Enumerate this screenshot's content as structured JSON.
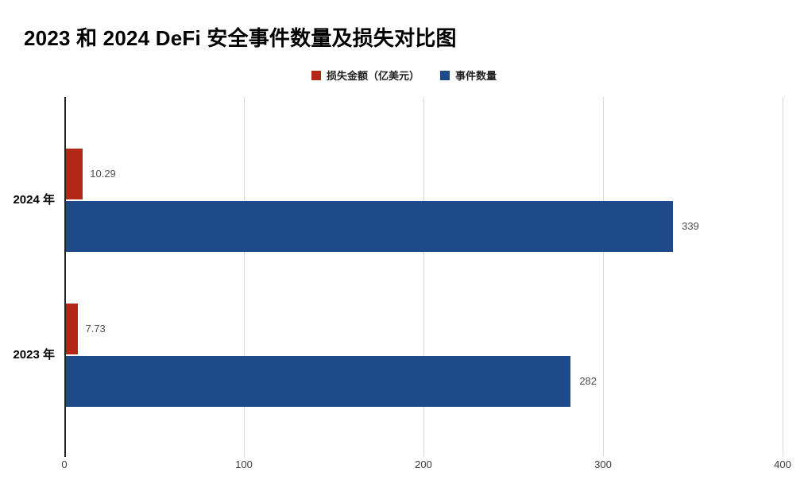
{
  "title": "2023 和 2024 DeFi 安全事件数量及损失对比图",
  "chart_data": {
    "type": "bar",
    "orientation": "horizontal",
    "title": "2023 和 2024 DeFi 安全事件数量及损失对比图",
    "categories": [
      "2024 年",
      "2023 年"
    ],
    "series": [
      {
        "name": "损失金额（亿美元）",
        "color": "#b22715",
        "values": [
          10.29,
          7.73
        ],
        "labels": [
          "10.29",
          "7.73"
        ]
      },
      {
        "name": "事件数量",
        "color": "#1f4a8a",
        "values": [
          339,
          282
        ],
        "labels": [
          "339",
          "282"
        ]
      }
    ],
    "x_axis": {
      "min": 0,
      "max": 400,
      "ticks": [
        0,
        100,
        200,
        300,
        400
      ]
    },
    "grid": true,
    "legend_position": "top",
    "colors": {
      "grid": "#d9d9d9",
      "axis": "#212121",
      "value_label": "#4f4f4f",
      "tick_label": "#3c3c3c"
    }
  }
}
